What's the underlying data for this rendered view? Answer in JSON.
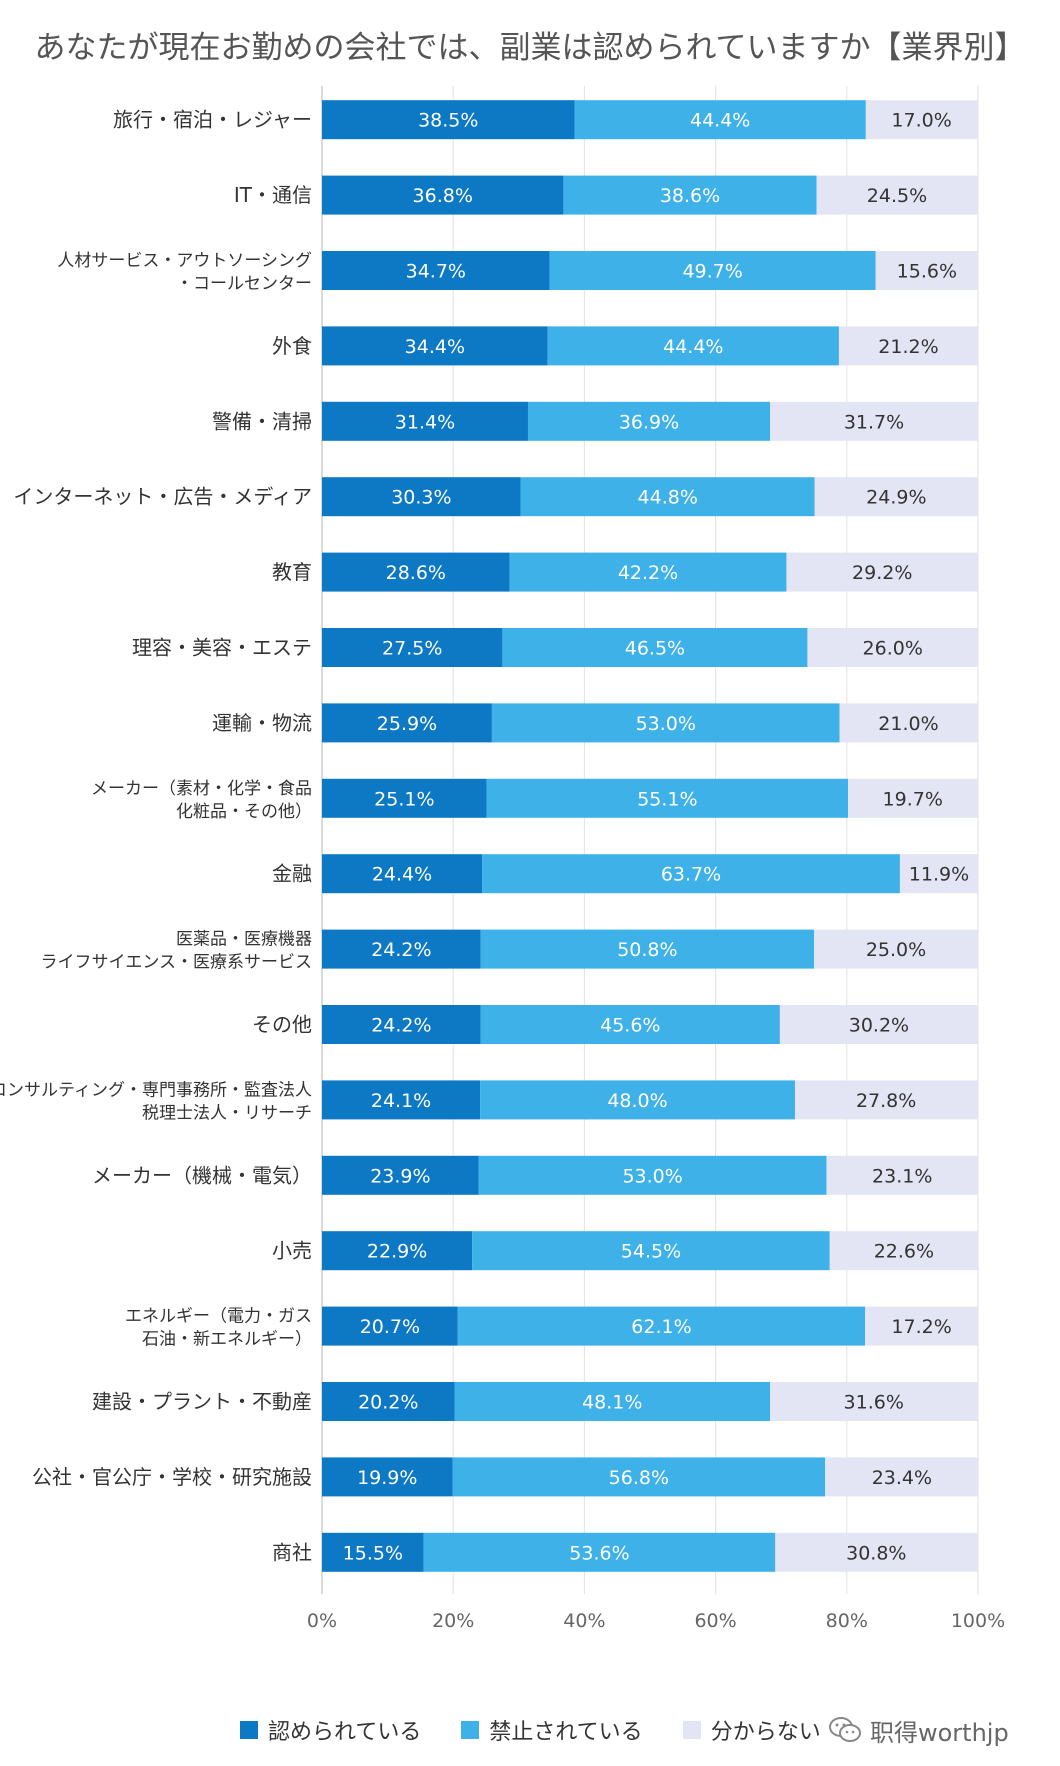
{
  "chart_data": {
    "type": "bar",
    "stacked": true,
    "orientation": "horizontal",
    "title": "あなたが現在お勤めの会社では、副業は認められていますか【業界別】",
    "categories": [
      [
        "旅行・宿泊・レジャー"
      ],
      [
        "IT・通信"
      ],
      [
        "人材サービス・アウトソーシング",
        "・コールセンター"
      ],
      [
        "外食"
      ],
      [
        "警備・清掃"
      ],
      [
        "インターネット・広告・メディア"
      ],
      [
        "教育"
      ],
      [
        "理容・美容・エステ"
      ],
      [
        "運輸・物流"
      ],
      [
        "メーカー（素材・化学・食品",
        "化粧品・その他）"
      ],
      [
        "金融"
      ],
      [
        "医薬品・医療機器",
        "ライフサイエンス・医療系サービス"
      ],
      [
        "その他"
      ],
      [
        "コンサルティング・専門事務所・監査法人",
        "税理士法人・リサーチ"
      ],
      [
        "メーカー（機械・電気）"
      ],
      [
        "小売"
      ],
      [
        "エネルギー（電力・ガス",
        "石油・新エネルギー）"
      ],
      [
        "建設・プラント・不動産"
      ],
      [
        "公社・官公庁・学校・研究施設"
      ],
      [
        "商社"
      ]
    ],
    "series": [
      {
        "name": "認められている",
        "color": "#0d78c4",
        "values": [
          38.5,
          36.8,
          34.7,
          34.4,
          31.4,
          30.3,
          28.6,
          27.5,
          25.9,
          25.1,
          24.4,
          24.2,
          24.2,
          24.1,
          23.9,
          22.9,
          20.7,
          20.2,
          19.9,
          15.5
        ],
        "labels": [
          "38.5%",
          "36.8%",
          "34.7%",
          "34.4%",
          "31.4%",
          "30.3%",
          "28.6%",
          "27.5%",
          "25.9%",
          "25.1%",
          "24.4%",
          "24.2%",
          "24.2%",
          "24.1%",
          "23.9%",
          "22.9%",
          "20.7%",
          "20.2%",
          "19.9%",
          "15.5%"
        ]
      },
      {
        "name": "禁止されている",
        "color": "#3eb1e8",
        "values": [
          44.4,
          38.6,
          49.7,
          44.4,
          36.9,
          44.8,
          42.2,
          46.5,
          53.0,
          55.1,
          63.7,
          50.8,
          45.6,
          48.0,
          53.0,
          54.5,
          62.1,
          48.1,
          56.8,
          53.6
        ],
        "labels": [
          "44.4%",
          "38.6%",
          "49.7%",
          "44.4%",
          "36.9%",
          "44.8%",
          "42.2%",
          "46.5%",
          "53.0%",
          "55.1%",
          "63.7%",
          "50.8%",
          "45.6%",
          "48.0%",
          "53.0%",
          "54.5%",
          "62.1%",
          "48.1%",
          "56.8%",
          "53.6%"
        ]
      },
      {
        "name": "分からない",
        "color": "#e3e4f4",
        "values": [
          17.0,
          24.5,
          15.6,
          21.2,
          31.7,
          24.9,
          29.2,
          26.0,
          21.0,
          19.7,
          11.9,
          25.0,
          30.2,
          27.8,
          23.1,
          22.6,
          17.2,
          31.6,
          23.4,
          30.8
        ],
        "labels": [
          "17.0%",
          "24.5%",
          "15.6%",
          "21.2%",
          "31.7%",
          "24.9%",
          "29.2%",
          "26.0%",
          "21.0%",
          "19.7%",
          "11.9%",
          "25.0%",
          "30.2%",
          "27.8%",
          "23.1%",
          "22.6%",
          "17.2%",
          "31.6%",
          "23.4%",
          "30.8%"
        ]
      }
    ],
    "xlim": [
      0,
      100
    ],
    "xticks": [
      "0%",
      "20%",
      "40%",
      "60%",
      "80%",
      "100%"
    ],
    "grid": true,
    "legend_position": "bottom",
    "label_colors": [
      "#ffffff",
      "#ffffff",
      "#333333"
    ]
  },
  "watermark": {
    "text": "职得worthjp",
    "icon": "wechat-icon"
  }
}
